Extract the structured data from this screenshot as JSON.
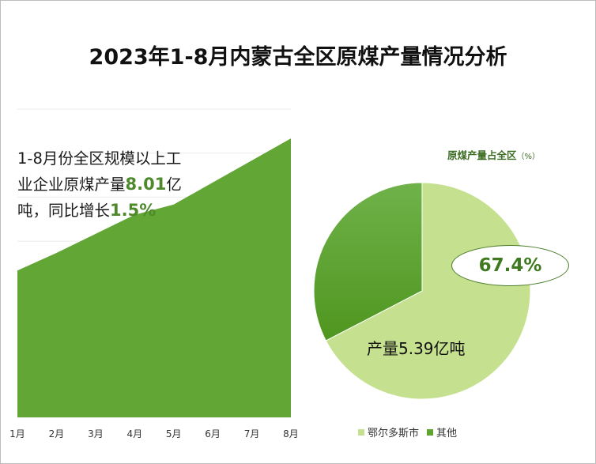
{
  "title": "2023年1-8月内蒙古全区原煤产量情况分析",
  "annotation": {
    "text_line1": "1-8月份全区规模以上工",
    "text_line2_prefix": "业企业原煤产量",
    "output_value": "8.01",
    "text_line2_suffix": "亿",
    "text_line3_prefix": "吨，同比增长",
    "growth_value": "1.5%"
  },
  "pie_label": {
    "pct": "67.4%",
    "output_prefix": "产量",
    "output_value": "5.39",
    "output_suffix": "亿吨"
  },
  "chart_data": [
    {
      "type": "area",
      "categories": [
        "1月",
        "2月",
        "3月",
        "4月",
        "5月",
        "6月",
        "7月",
        "8月"
      ],
      "values": [
        1.0,
        1.12,
        1.25,
        1.38,
        1.45,
        1.6,
        1.75,
        1.9
      ],
      "color": "#62a635",
      "grid": true
    },
    {
      "type": "pie",
      "title": "原煤产量占全区",
      "unit": "（%）",
      "slices": [
        {
          "label": "鄂尔多斯市",
          "value": 67.4,
          "color": "#c5e08e"
        },
        {
          "label": "其他",
          "value": 32.6,
          "color": "#5fa532"
        }
      ],
      "legend_position": "bottom"
    }
  ]
}
